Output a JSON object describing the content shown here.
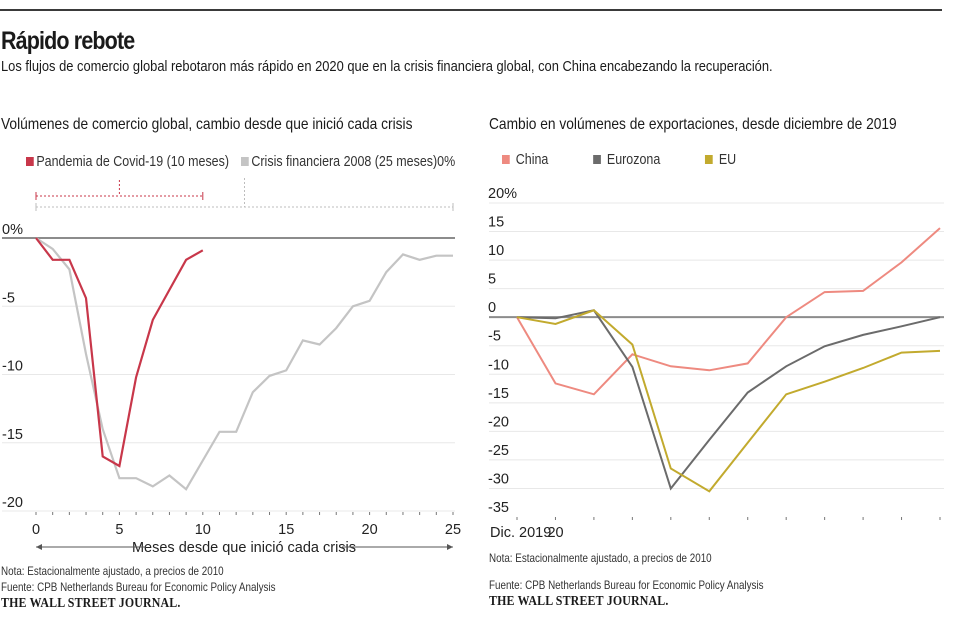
{
  "header": {
    "title": "Rápido rebote",
    "subtitle": "Los flujos de comercio global rebotaron más rápido en 2020  que en la crisis financiera global, con China encabezando la recuperación."
  },
  "left_panel": {
    "title": "Volúmenes de comercio global, cambio desde que inició cada crisis",
    "note": "Nota: Estacionalmente ajustado, a precios de 2010",
    "source": "Fuente: CPB Netherlands Bureau for Economic Policy Analysis",
    "brand": "THE WALL STREET JOURNAL."
  },
  "right_panel": {
    "title": "Cambio en volúmenes de exportaciones, desde diciembre de 2019",
    "note": "Nota: Estacionalmente ajustado, a precios de 2010",
    "source": "Fuente: CPB Netherlands Bureau for Economic Policy Analysis",
    "brand": "THE WALL STREET JOURNAL."
  },
  "colors": {
    "covid": "#c8374a",
    "crisis2008": "#c4c4c4",
    "china": "#ee8a80",
    "eurozona": "#6b6b6b",
    "eu": "#c2aa2e",
    "zero_line": "#8c8c8c",
    "grid": "#e8e8e8"
  },
  "chart_data": [
    {
      "type": "line",
      "title": "Volúmenes de comercio global, cambio desde que inició cada crisis",
      "xlabel": "Meses desde que inició cada crisis",
      "ylabel": "",
      "x": [
        0,
        1,
        2,
        3,
        4,
        5,
        6,
        7,
        8,
        9,
        10,
        11,
        12,
        13,
        14,
        15,
        16,
        17,
        18,
        19,
        20,
        21,
        22,
        23,
        24,
        25
      ],
      "xlim": [
        0,
        25
      ],
      "ylim": [
        -20,
        0
      ],
      "x_ticks": [
        0,
        5,
        10,
        15,
        20,
        25
      ],
      "x_tick_labels": [
        "0",
        "5",
        "10",
        "15",
        "20",
        "25"
      ],
      "y_ticks": [
        0,
        -5,
        -10,
        -15,
        -20
      ],
      "y_tick_labels": [
        "0%",
        "-5",
        "-10",
        "-15",
        "-20"
      ],
      "legend_trailing_text": "0%",
      "grid": true,
      "legend_position": "top-left",
      "series": [
        {
          "name": "Pandemia de Covid-19 (10 meses)",
          "color_key": "covid",
          "values": [
            0,
            -1.6,
            -1.6,
            -4.4,
            -16.0,
            -16.7,
            -10.2,
            -6.0,
            -3.8,
            -1.6,
            -0.9
          ]
        },
        {
          "name": "Crisis financiera 2008 (25 meses)",
          "color_key": "crisis2008",
          "values": [
            0,
            -0.8,
            -2.3,
            -8.5,
            -14.0,
            -17.6,
            -17.6,
            -18.2,
            -17.4,
            -18.4,
            -16.3,
            -14.2,
            -14.2,
            -11.3,
            -10.1,
            -9.7,
            -7.5,
            -7.8,
            -6.6,
            -5.0,
            -4.6,
            -2.5,
            -1.2,
            -1.6,
            -1.3,
            -1.3
          ]
        }
      ]
    },
    {
      "type": "line",
      "title": "Cambio en volúmenes de exportaciones, desde diciembre de 2019",
      "xlabel": "",
      "ylabel": "",
      "x": [
        "Dic. 2019",
        "20",
        "",
        "",
        "",
        "",
        "",
        "",
        "",
        "",
        "",
        ""
      ],
      "x_tick_labels": [
        "Dic. 2019",
        "20"
      ],
      "ylim": [
        -35,
        20
      ],
      "y_ticks": [
        20,
        15,
        10,
        5,
        0,
        -5,
        -10,
        -15,
        -20,
        -25,
        -30,
        -35
      ],
      "y_tick_labels": [
        "20%",
        "15",
        "10",
        "5",
        "0",
        "-5",
        "-10",
        "-15",
        "-20",
        "-25",
        "-30",
        "-35"
      ],
      "grid": true,
      "legend_position": "top-left",
      "series": [
        {
          "name": "China",
          "color_key": "china",
          "values": [
            0,
            -11.6,
            -13.5,
            -6.5,
            -8.6,
            -9.3,
            -8.1,
            0,
            4.4,
            4.6,
            9.6,
            15.6
          ]
        },
        {
          "name": "Eurozona",
          "color_key": "eurozona",
          "values": [
            0,
            -0.2,
            1.2,
            -8.7,
            -30.0,
            -21.5,
            -13.2,
            -8.6,
            -5.1,
            -3.1,
            -1.6,
            0
          ]
        },
        {
          "name": "EU",
          "color_key": "eu",
          "values": [
            0,
            -1.2,
            1.2,
            -4.8,
            -26.5,
            -30.5,
            -22.0,
            -13.5,
            -11.3,
            -8.9,
            -6.2,
            -5.9
          ]
        }
      ]
    }
  ]
}
